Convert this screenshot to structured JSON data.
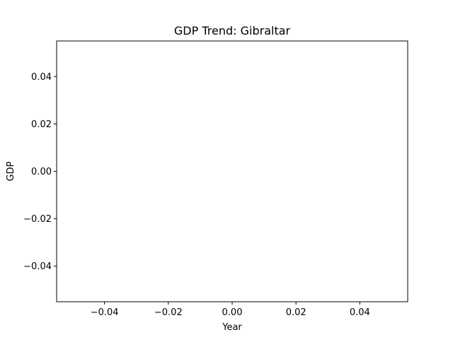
{
  "chart_data": {
    "type": "line",
    "title": "GDP Trend: Gibraltar",
    "xlabel": "Year",
    "ylabel": "GDP",
    "x": [],
    "series": [
      {
        "values": []
      }
    ],
    "xlim": [
      -0.055,
      0.055
    ],
    "ylim": [
      -0.055,
      0.055
    ],
    "xticks": [
      "−0.04",
      "−0.02",
      "0.00",
      "0.02",
      "0.04"
    ],
    "xtick_values": [
      -0.04,
      -0.02,
      0.0,
      0.02,
      0.04
    ],
    "yticks": [
      "−0.04",
      "−0.02",
      "0.00",
      "0.02",
      "0.04"
    ],
    "ytick_values": [
      -0.04,
      -0.02,
      0.0,
      0.02,
      0.04
    ],
    "grid": false,
    "legend": "none"
  }
}
